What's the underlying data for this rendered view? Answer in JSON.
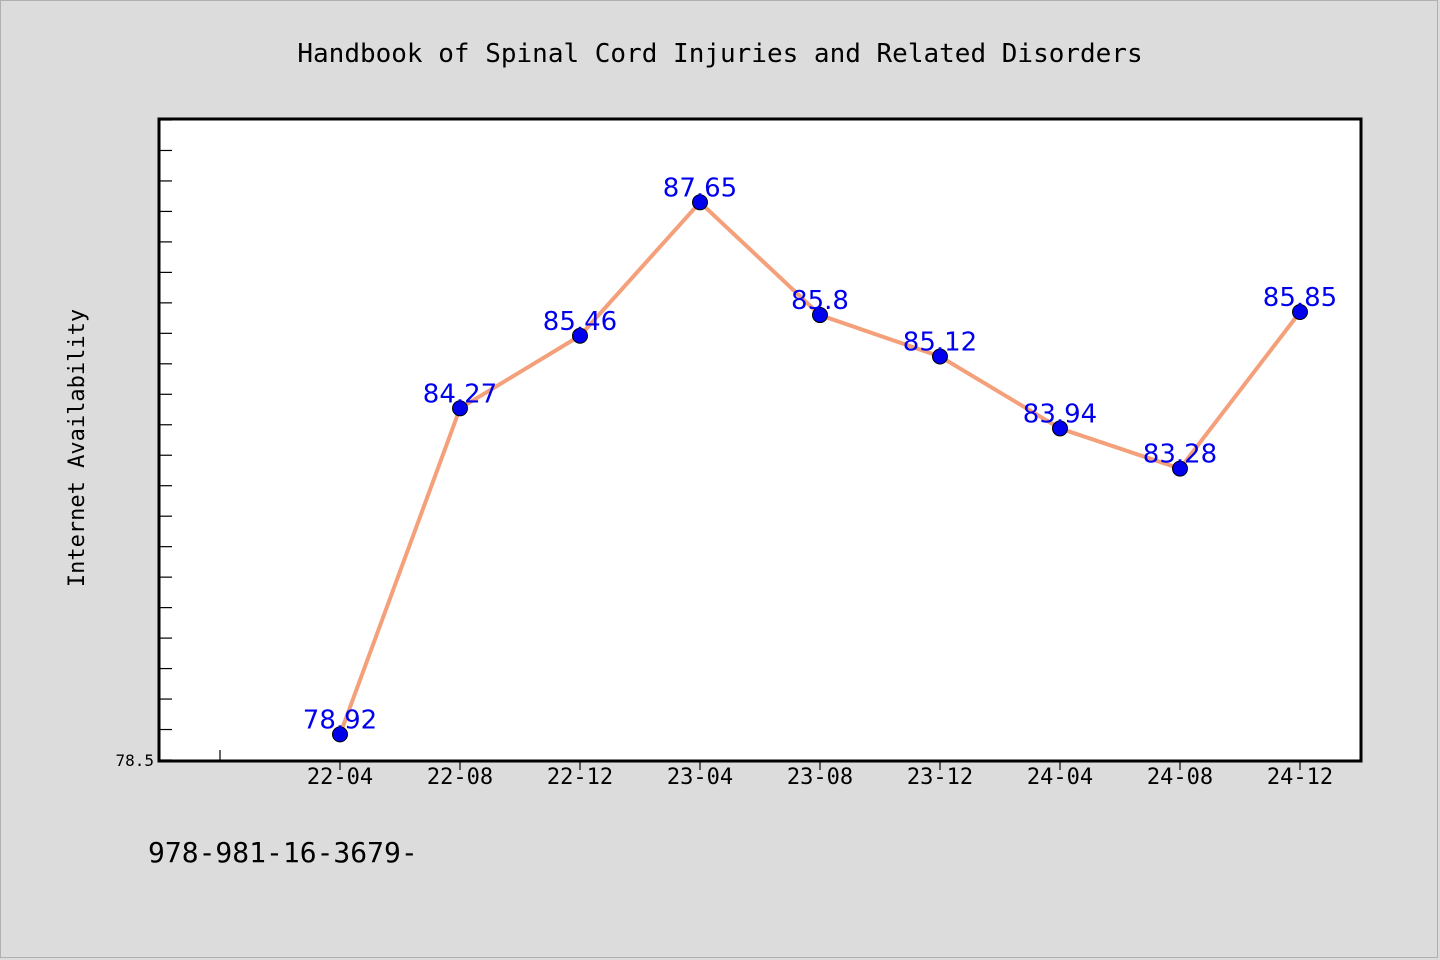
{
  "chart_data": {
    "type": "line",
    "title": "Handbook of Spinal Cord Injuries and Related Disorders",
    "xlabel": "",
    "ylabel": "Internet Availability",
    "categories": [
      "22-04",
      "22-08",
      "22-12",
      "23-04",
      "23-08",
      "23-12",
      "24-04",
      "24-08",
      "24-12"
    ],
    "series": [
      {
        "values": [
          78.92,
          84.27,
          85.46,
          87.65,
          85.8,
          85.12,
          83.94,
          83.28,
          85.85
        ],
        "line_color": "#f4a07a",
        "marker_color": "#0000ee"
      }
    ],
    "data_labels": [
      "78.92",
      "84.27",
      "85.46",
      "87.65",
      "85.8",
      "85.12",
      "83.94",
      "83.28",
      "85.85"
    ],
    "label_color": "#0000ee",
    "ylim": [
      78.5,
      89.0
    ],
    "yticks_labeled": [
      "78.5"
    ],
    "grid": false,
    "legend": "none"
  },
  "footer": {
    "isbn_text": "978-981-16-3679-"
  }
}
